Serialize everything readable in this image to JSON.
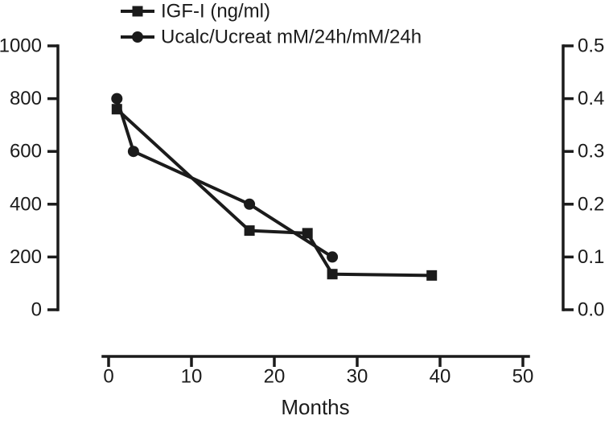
{
  "chart_data": {
    "type": "line",
    "title": "",
    "xlabel": "Months",
    "xlim": [
      0,
      50
    ],
    "x_ticks": [
      "0",
      "10",
      "20",
      "30",
      "40",
      "50"
    ],
    "grid": false,
    "legend_position": "top-left",
    "color": "#1b1b1b",
    "left_axis": {
      "lim": [
        0,
        1000
      ],
      "ticks": [
        "0",
        "200",
        "400",
        "600",
        "800",
        "1000"
      ]
    },
    "right_axis": {
      "lim": [
        0,
        0.5
      ],
      "ticks": [
        "0.0",
        "0.1",
        "0.2",
        "0.3",
        "0.4",
        "0.5"
      ]
    },
    "series": [
      {
        "name": "IGF-I (ng/ml)",
        "marker": "square",
        "axis": "left",
        "points": [
          [
            1,
            760
          ],
          [
            17,
            300
          ],
          [
            24,
            290
          ],
          [
            27,
            135
          ],
          [
            39,
            130
          ]
        ]
      },
      {
        "name": "Ucalc/Ucreat mM/24h/mM/24h",
        "marker": "circle",
        "axis": "right",
        "points": [
          [
            1,
            0.4
          ],
          [
            3,
            0.3
          ],
          [
            17,
            0.2
          ],
          [
            27,
            0.1
          ]
        ]
      }
    ],
    "icons": {
      "igf_marker": "filled-square-marker",
      "ucalc_marker": "filled-circle-marker"
    }
  }
}
